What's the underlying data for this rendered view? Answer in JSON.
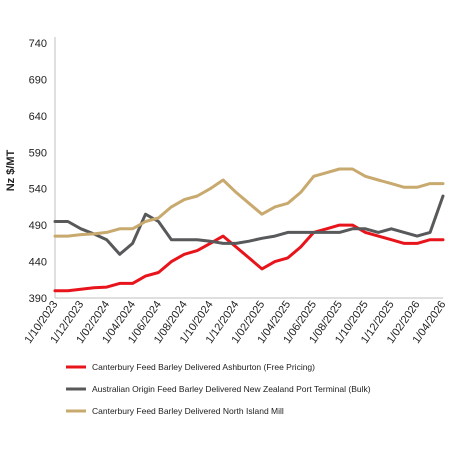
{
  "chart_data": {
    "type": "line",
    "title": "",
    "xlabel": "",
    "ylabel": "Nz $/MT",
    "ylim": [
      390,
      740
    ],
    "yticks": [
      390,
      440,
      490,
      540,
      590,
      640,
      690,
      740
    ],
    "grid": false,
    "legend_position": "bottom",
    "x_tick_labels": [
      "1/10/2023",
      "1/12/2023",
      "1/02/2024",
      "1/04/2024",
      "1/06/2024",
      "1/08/2024",
      "1/10/2024",
      "1/12/2024",
      "1/02/2025",
      "1/04/2025",
      "1/06/2025",
      "1/08/2025",
      "1/10/2025",
      "1/12/2025",
      "1/02/2026",
      "1/04/2026"
    ],
    "x": [
      "2023-10",
      "2023-11",
      "2023-12",
      "2024-01",
      "2024-02",
      "2024-03",
      "2024-04",
      "2024-05",
      "2024-06",
      "2024-07",
      "2024-08",
      "2024-09",
      "2024-10",
      "2024-11",
      "2024-12",
      "2025-01",
      "2025-02",
      "2025-03",
      "2025-04",
      "2025-05",
      "2025-06",
      "2025-07",
      "2025-08",
      "2025-09",
      "2025-10",
      "2025-11",
      "2025-12",
      "2026-01",
      "2026-02",
      "2026-03",
      "2026-04"
    ],
    "series": [
      {
        "name": "Canterbury Feed Barley Delivered Ashburton (Free Pricing)",
        "color": "#e8141c",
        "values": [
          400,
          400,
          402,
          404,
          405,
          410,
          410,
          420,
          425,
          440,
          450,
          455,
          465,
          475,
          460,
          445,
          430,
          440,
          445,
          460,
          480,
          485,
          490,
          490,
          480,
          475,
          470,
          465,
          465,
          470,
          470
        ]
      },
      {
        "name": "Australian Origin Feed Barley Delivered New Zealand Port Terminal (Bulk)",
        "color": "#58595b",
        "values": [
          495,
          495,
          485,
          478,
          470,
          450,
          465,
          505,
          495,
          470,
          470,
          470,
          468,
          465,
          465,
          468,
          472,
          475,
          480,
          480,
          480,
          480,
          480,
          485,
          485,
          480,
          485,
          480,
          475,
          480,
          530
        ]
      },
      {
        "name": "Canterbury Feed Barley Delivered North Island Mill",
        "color": "#c8a96e",
        "values": [
          475,
          475,
          477,
          478,
          480,
          485,
          485,
          495,
          500,
          515,
          525,
          530,
          540,
          552,
          535,
          520,
          505,
          515,
          520,
          535,
          557,
          562,
          567,
          567,
          557,
          552,
          547,
          542,
          542,
          547,
          547
        ]
      }
    ]
  }
}
